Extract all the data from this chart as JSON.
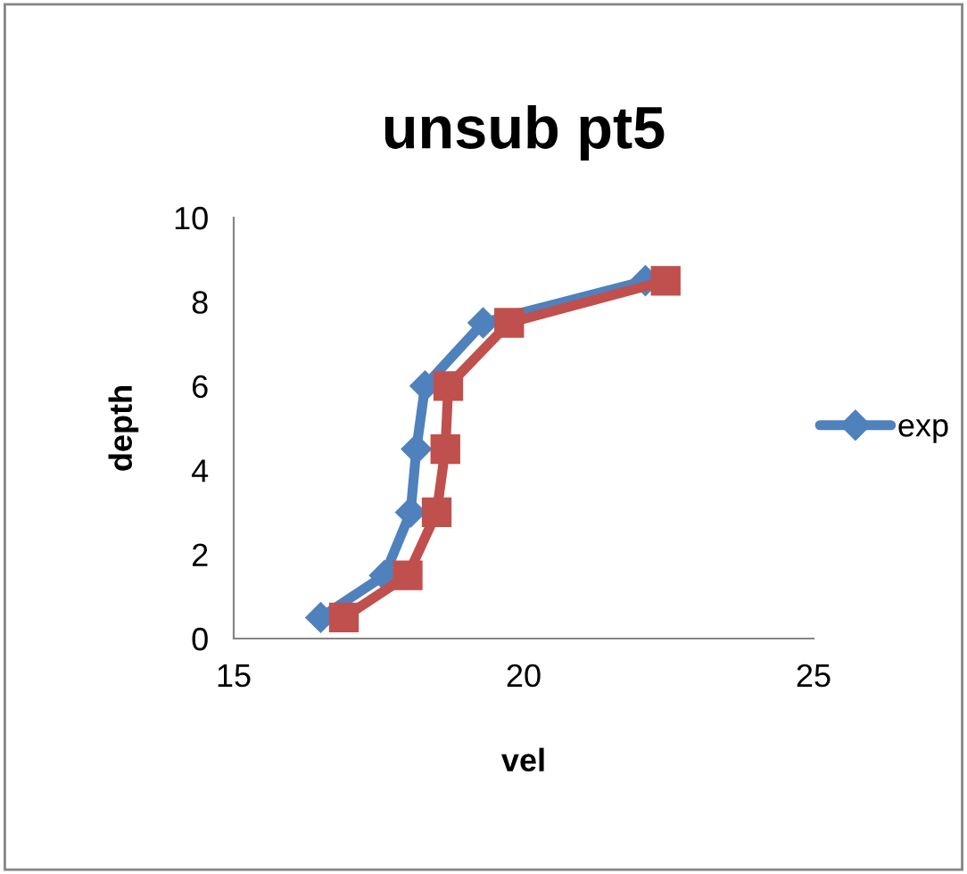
{
  "chart_data": {
    "type": "line",
    "title": "unsub pt5",
    "xlabel": "vel",
    "ylabel": "depth",
    "xlim": [
      15,
      25
    ],
    "xticks": [
      15,
      20,
      25
    ],
    "ylim": [
      0,
      10
    ],
    "yticks": [
      0,
      2,
      4,
      6,
      8,
      10
    ],
    "grid": false,
    "legend": "right",
    "series": [
      {
        "name": "exp",
        "color": "#4f81bd",
        "marker": "diamond",
        "x": [
          16.5,
          17.6,
          18.05,
          18.15,
          18.3,
          19.3,
          22.1
        ],
        "values": [
          0.5,
          1.5,
          3,
          4.5,
          6,
          7.5,
          8.5
        ]
      },
      {
        "color": "#c0504d",
        "marker": "square",
        "x": [
          16.9,
          18.0,
          18.5,
          18.65,
          18.7,
          19.75,
          22.45
        ],
        "values": [
          0.5,
          1.5,
          3,
          4.5,
          6,
          7.5,
          8.5
        ]
      }
    ]
  }
}
